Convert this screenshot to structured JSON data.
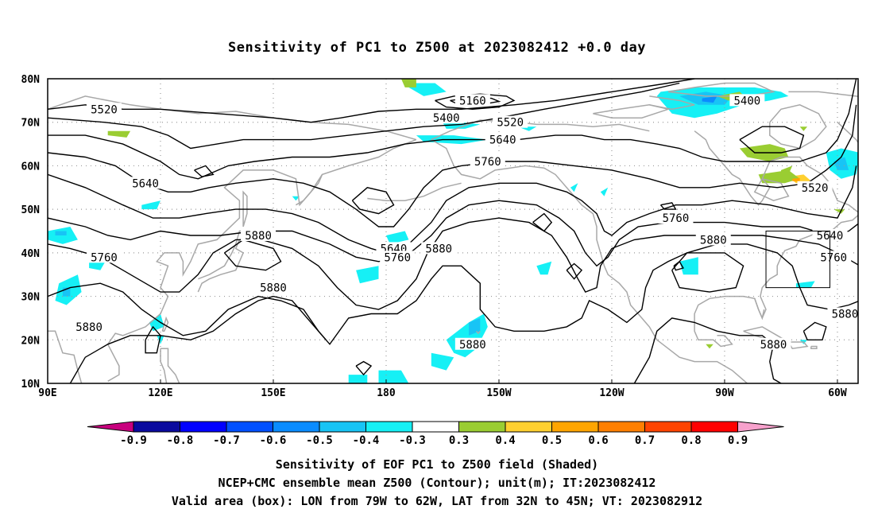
{
  "title": "Sensitivity of PC1 to Z500 at 2023082412 +0.0 day",
  "map": {
    "lat_labels": [
      {
        "text": "80N",
        "lat": 80
      },
      {
        "text": "70N",
        "lat": 70
      },
      {
        "text": "60N",
        "lat": 60
      },
      {
        "text": "50N",
        "lat": 50
      },
      {
        "text": "40N",
        "lat": 40
      },
      {
        "text": "30N",
        "lat": 30
      },
      {
        "text": "20N",
        "lat": 20
      },
      {
        "text": "10N",
        "lat": 10
      }
    ],
    "lon_labels": [
      {
        "text": "90E",
        "lon": 90
      },
      {
        "text": "120E",
        "lon": 120
      },
      {
        "text": "150E",
        "lon": 150
      },
      {
        "text": "180",
        "lon": 180
      },
      {
        "text": "150W",
        "lon": 210
      },
      {
        "text": "120W",
        "lon": 240
      },
      {
        "text": "90W",
        "lon": 270
      },
      {
        "text": "60W",
        "lon": 300
      }
    ],
    "contour_labels": [
      {
        "text": "5520",
        "lon": 105,
        "lat": 73
      },
      {
        "text": "5160",
        "lon": 203,
        "lat": 75
      },
      {
        "text": "5400",
        "lon": 196,
        "lat": 71
      },
      {
        "text": "5520",
        "lon": 213,
        "lat": 70
      },
      {
        "text": "5640",
        "lon": 211,
        "lat": 66
      },
      {
        "text": "5400",
        "lon": 276,
        "lat": 75
      },
      {
        "text": "5760",
        "lon": 207,
        "lat": 61
      },
      {
        "text": "5640",
        "lon": 116,
        "lat": 56
      },
      {
        "text": "5520",
        "lon": 294,
        "lat": 55
      },
      {
        "text": "5760",
        "lon": 257,
        "lat": 48
      },
      {
        "text": "5880",
        "lon": 146,
        "lat": 44
      },
      {
        "text": "5640",
        "lon": 182,
        "lat": 41
      },
      {
        "text": "5760",
        "lon": 183,
        "lat": 39
      },
      {
        "text": "5880",
        "lon": 194,
        "lat": 41
      },
      {
        "text": "5880",
        "lon": 267,
        "lat": 43
      },
      {
        "text": "5640",
        "lon": 298,
        "lat": 44
      },
      {
        "text": "5760",
        "lon": 299,
        "lat": 39
      },
      {
        "text": "5760",
        "lon": 105,
        "lat": 39
      },
      {
        "text": "5880",
        "lon": 150,
        "lat": 32
      },
      {
        "text": "5880",
        "lon": 302,
        "lat": 26
      },
      {
        "text": "5880",
        "lon": 101,
        "lat": 23
      },
      {
        "text": "5880",
        "lon": 203,
        "lat": 19
      },
      {
        "text": "5880",
        "lon": 283,
        "lat": 19
      }
    ],
    "box": {
      "lon_min": -79,
      "lon_max": -62,
      "lat_min": 32,
      "lat_max": 45
    }
  },
  "colorbar": {
    "labels": [
      "-0.9",
      "-0.8",
      "-0.7",
      "-0.6",
      "-0.5",
      "-0.4",
      "-0.3",
      "0.3",
      "0.4",
      "0.5",
      "0.6",
      "0.7",
      "0.8",
      "0.9"
    ],
    "colors": [
      "#0a0a9e",
      "#0000ff",
      "#0050ff",
      "#0a8cff",
      "#18c4f5",
      "#16f0f5",
      "#ffffff",
      "#9acd32",
      "#ffd030",
      "#ffa500",
      "#ff7f00",
      "#ff4400",
      "#ff0000"
    ],
    "left_tip": "#c8007e",
    "right_tip": "#f7a1cc"
  },
  "captions": {
    "line1": "Sensitivity of EOF PC1 to Z500 field (Shaded)",
    "line2": "NCEP+CMC ensemble mean Z500 (Contour); unit(m); IT:2023082412",
    "line3": "Valid area (box): LON from 79W to 62W, LAT from 32N to 45N; VT: 2023082912"
  }
}
